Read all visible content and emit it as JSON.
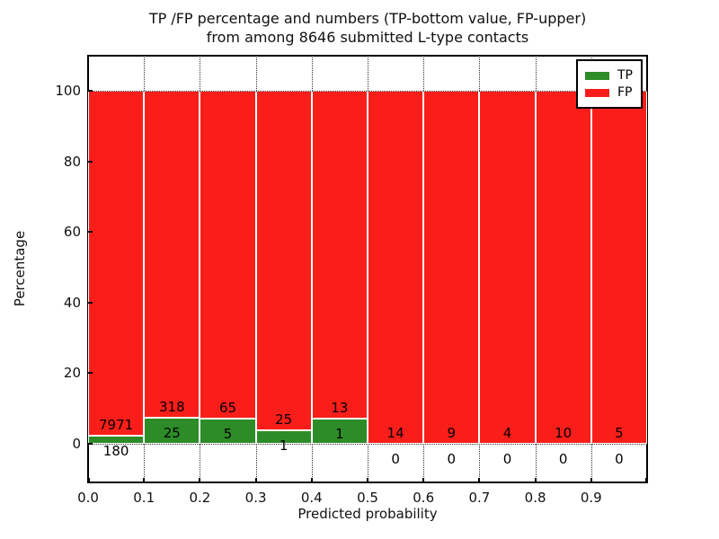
{
  "figure": {
    "title_line1": "TP /FP percentage and numbers (TP-bottom value, FP-upper)",
    "title_line2": "from among 8646 submitted L-type contacts",
    "xlabel": "Predicted probability",
    "ylabel": "Percentage"
  },
  "chart_data": {
    "type": "bar",
    "stacked": true,
    "title": "TP /FP percentage and numbers (TP-bottom value, FP-upper) from among 8646 submitted L-type contacts",
    "xlabel": "Predicted probability",
    "ylabel": "Percentage",
    "total_contacts": 8646,
    "bin_edges": [
      0.0,
      0.1,
      0.2,
      0.3,
      0.4,
      0.5,
      0.6,
      0.7,
      0.8,
      0.9,
      1.0
    ],
    "series": [
      {
        "name": "TP",
        "color": "#2d8c28",
        "counts": [
          180,
          25,
          5,
          1,
          1,
          0,
          0,
          0,
          0,
          0
        ],
        "percent": [
          2.21,
          7.29,
          7.14,
          3.85,
          7.14,
          0,
          0,
          0,
          0,
          0
        ]
      },
      {
        "name": "FP",
        "color": "#fa1e1a",
        "counts": [
          7971,
          318,
          65,
          25,
          13,
          14,
          9,
          4,
          10,
          5
        ],
        "percent": [
          97.79,
          92.71,
          92.86,
          96.15,
          92.86,
          100,
          100,
          100,
          100,
          100
        ]
      }
    ],
    "label_note": "TP count printed below segment boundary, FP count printed above it",
    "xticks": [
      "0.0",
      "0.1",
      "0.2",
      "0.3",
      "0.4",
      "0.5",
      "0.6",
      "0.7",
      "0.8",
      "0.9"
    ],
    "yticks": [
      "0",
      "20",
      "40",
      "60",
      "80",
      "100"
    ],
    "xlim": [
      0,
      1
    ],
    "ylim": [
      -11,
      110
    ],
    "grid": "dotted",
    "legend": {
      "position": "upper right",
      "entries": [
        {
          "label": "TP",
          "color": "#2d8c28"
        },
        {
          "label": "FP",
          "color": "#fa1e1a"
        }
      ]
    }
  }
}
